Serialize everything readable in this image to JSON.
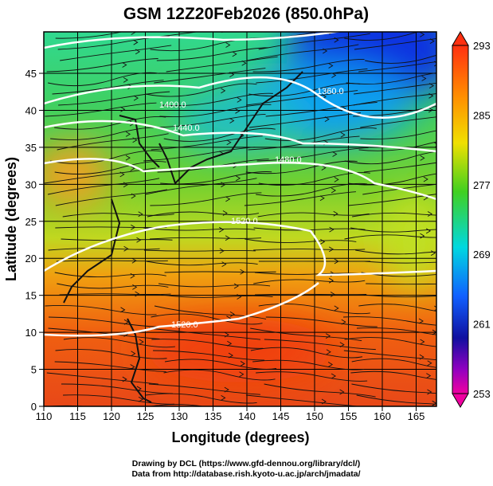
{
  "title": "GSM 12Z20Feb2026 (850.0hPa)",
  "x_axis": {
    "label": "Longitude (degrees)",
    "ticks": [
      "110",
      "115",
      "120",
      "125",
      "130",
      "135",
      "140",
      "145",
      "150",
      "155",
      "160",
      "165"
    ],
    "range": [
      110,
      168
    ]
  },
  "y_axis": {
    "label": "Latitude  (degrees)",
    "ticks": [
      "0",
      "5",
      "10",
      "15",
      "20",
      "25",
      "30",
      "35",
      "40",
      "45"
    ],
    "range": [
      0,
      50.6
    ]
  },
  "colorbar": {
    "ticks": [
      "293",
      "285",
      "277",
      "269",
      "261",
      "253"
    ],
    "range": [
      253,
      293
    ],
    "colors": [
      "#e8006e",
      "#c000c0",
      "#1010a0",
      "#1050ff",
      "#00c8ff",
      "#00e080",
      "#60d020",
      "#f0e000",
      "#ff9000",
      "#ff3010"
    ]
  },
  "contours": [
    {
      "label": "1360.0"
    },
    {
      "label": "1400.0"
    },
    {
      "label": "1440.0"
    },
    {
      "label": "1480.0"
    },
    {
      "label": "1520.0"
    },
    {
      "label": "1520.0"
    }
  ],
  "footer": {
    "line1": "Drawing by DCL (https://www.gfd-dennou.org/library/dcl/)",
    "line2": "Data from http://database.rish.kyoto-u.ac.jp/arch/jmadata/"
  }
}
